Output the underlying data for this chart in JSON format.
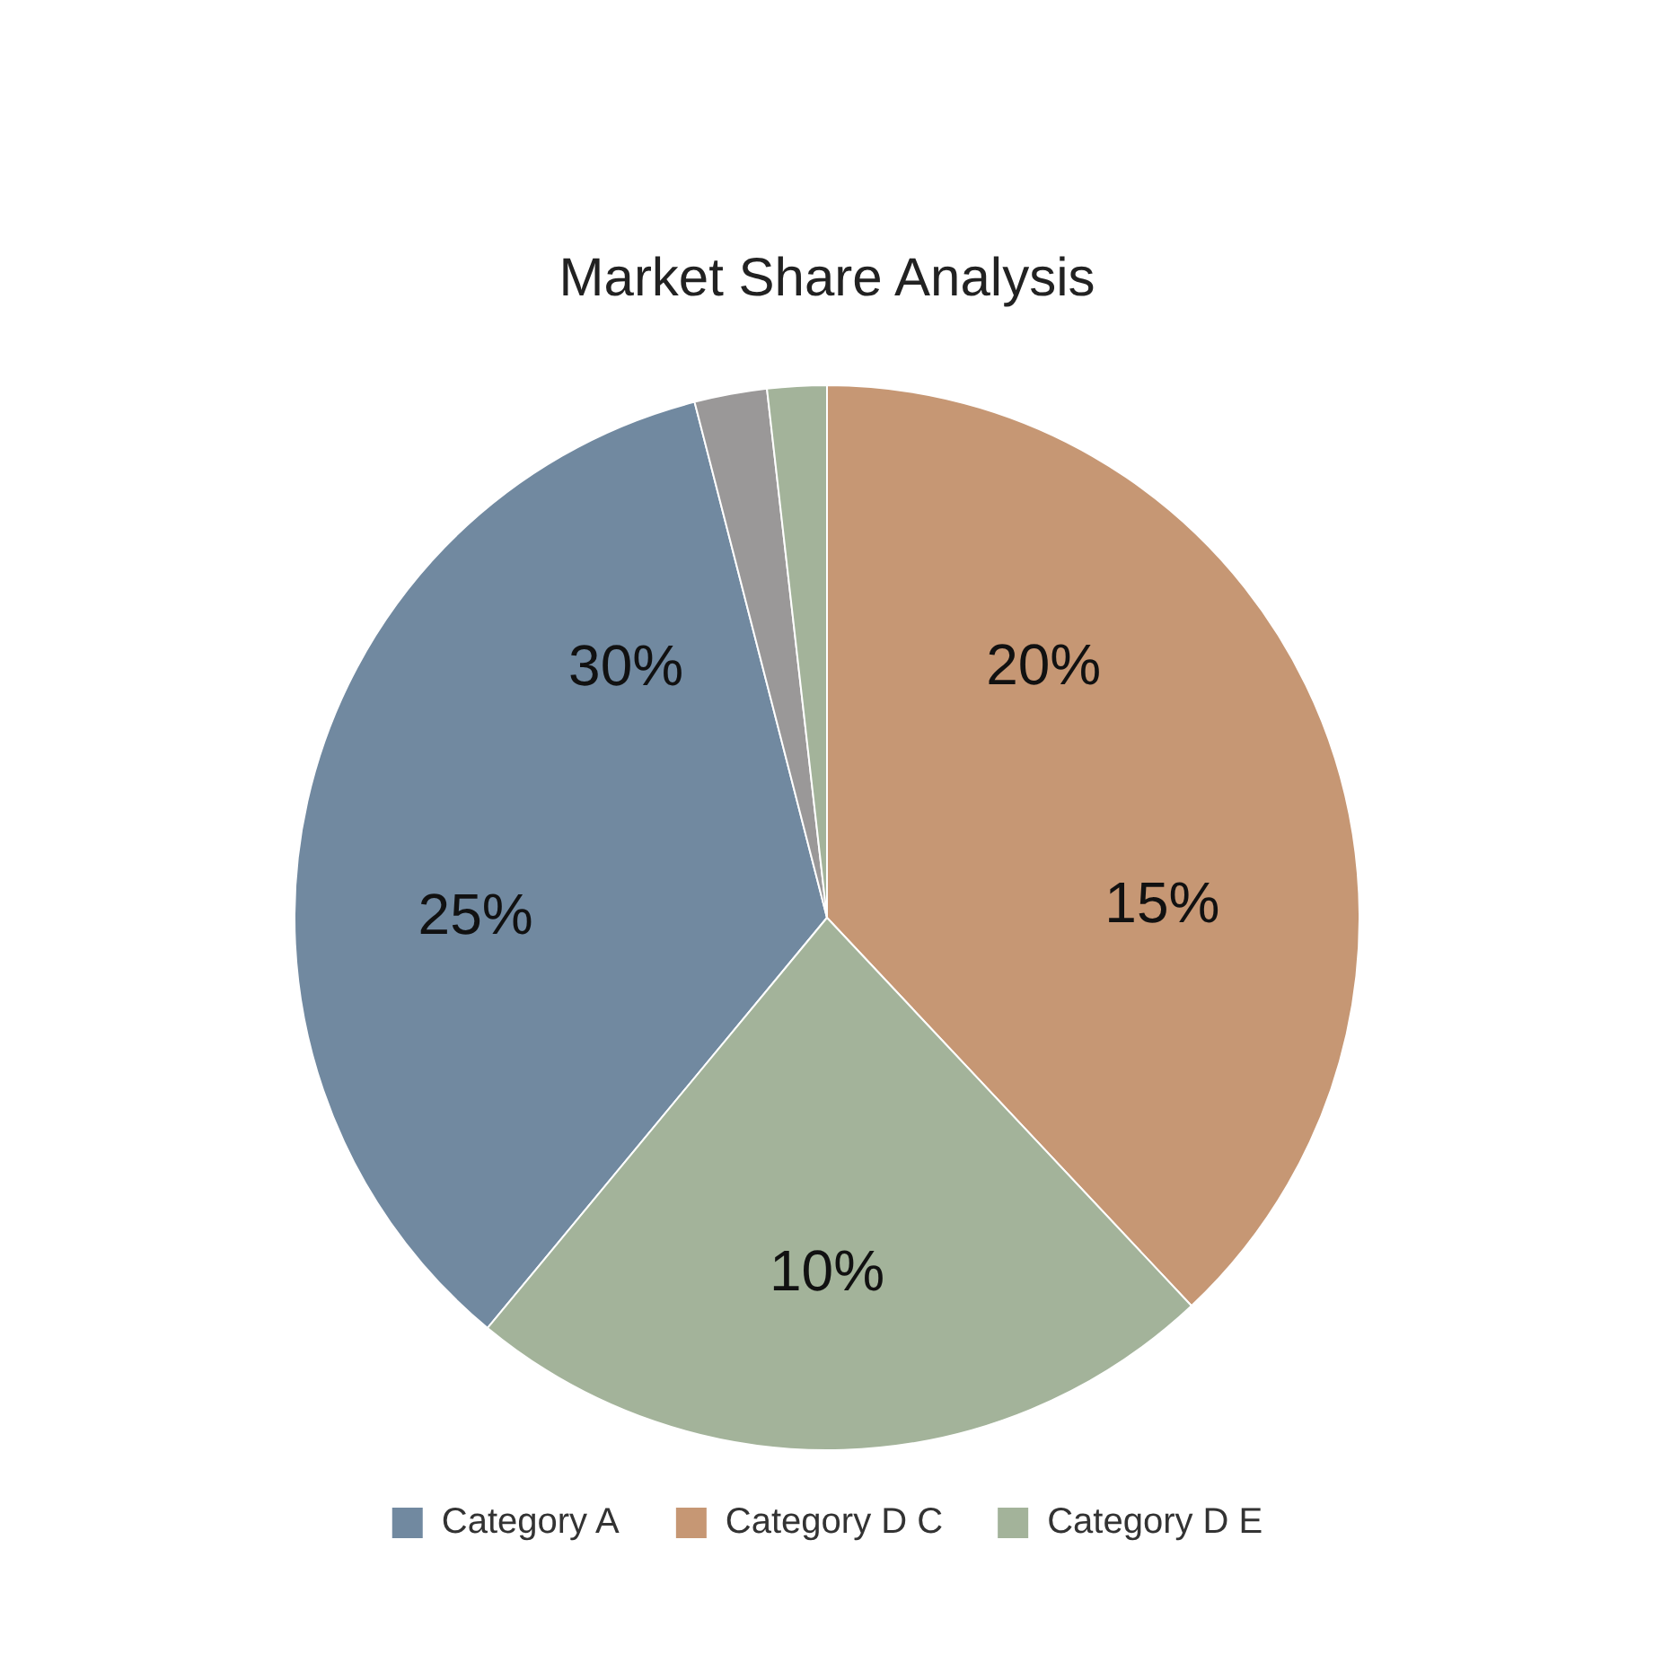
{
  "chart_data": {
    "type": "pie",
    "title": "Market Share Analysis",
    "categories": [
      "Category A",
      null,
      null,
      "Category D C",
      "Category D E"
    ],
    "values": [
      35,
      2.2,
      1.8,
      38,
      23
    ],
    "colors": [
      "#7189a0",
      "#9a9898",
      "#a3b39a",
      "#c69774",
      "#a3b39a"
    ],
    "annotations": [
      "30%",
      "25%",
      "20%",
      "15%",
      "10%"
    ],
    "legend": "bottom"
  }
}
